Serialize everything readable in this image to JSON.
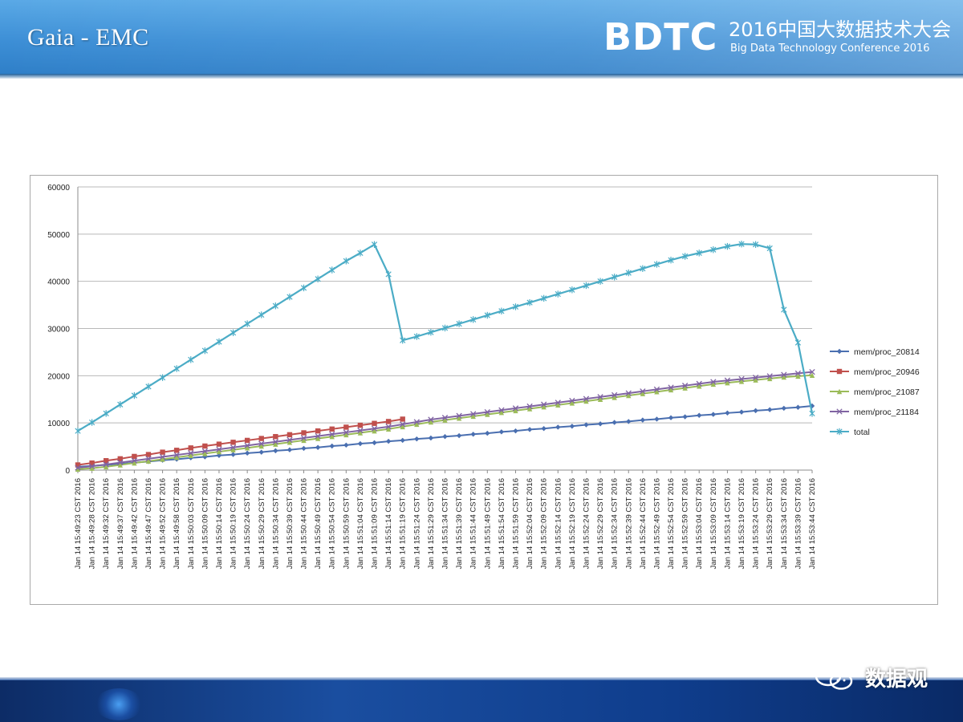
{
  "slide": {
    "title": "Gaia - EMC"
  },
  "logo": {
    "main": "BDTC",
    "chinese": "2016中国大数据技术大会",
    "english": "Big Data Technology Conference 2016"
  },
  "watermark": {
    "text": "数据观",
    "icon": "wechat-icon"
  },
  "colors": {
    "header": "#3d8fd6",
    "footer": "#1a4ea0",
    "gridline": "#b8b8b8",
    "series": [
      "#4a6fb0",
      "#c0504d",
      "#9bbb59",
      "#8064a2",
      "#4bacc6"
    ]
  },
  "chart_data": {
    "type": "line",
    "ylim": [
      0,
      60000
    ],
    "yticks": [
      0,
      10000,
      20000,
      30000,
      40000,
      50000,
      60000
    ],
    "grid": true,
    "legend_position": "right",
    "x_labels": [
      "Jan 14 15:49:23 CST 2016",
      "Jan 14 15:49:28 CST 2016",
      "Jan 14 15:49:32 CST 2016",
      "Jan 14 15:49:37 CST 2016",
      "Jan 14 15:49:42 CST 2016",
      "Jan 14 15:49:47 CST 2016",
      "Jan 14 15:49:52 CST 2016",
      "Jan 14 15:49:58 CST 2016",
      "Jan 14 15:50:03 CST 2016",
      "Jan 14 15:50:09 CST 2016",
      "Jan 14 15:50:14 CST 2016",
      "Jan 14 15:50:19 CST 2016",
      "Jan 14 15:50:24 CST 2016",
      "Jan 14 15:50:29 CST 2016",
      "Jan 14 15:50:34 CST 2016",
      "Jan 14 15:50:39 CST 2016",
      "Jan 14 15:50:44 CST 2016",
      "Jan 14 15:50:49 CST 2016",
      "Jan 14 15:50:54 CST 2016",
      "Jan 14 15:50:59 CST 2016",
      "Jan 14 15:51:04 CST 2016",
      "Jan 14 15:51:09 CST 2016",
      "Jan 14 15:51:14 CST 2016",
      "Jan 14 15:51:19 CST 2016",
      "Jan 14 15:51:24 CST 2016",
      "Jan 14 15:51:29 CST 2016",
      "Jan 14 15:51:34 CST 2016",
      "Jan 14 15:51:39 CST 2016",
      "Jan 14 15:51:44 CST 2016",
      "Jan 14 15:51:49 CST 2016",
      "Jan 14 15:51:54 CST 2016",
      "Jan 14 15:51:59 CST 2016",
      "Jan 14 15:52:04 CST 2016",
      "Jan 14 15:52:09 CST 2016",
      "Jan 14 15:52:14 CST 2016",
      "Jan 14 15:52:19 CST 2016",
      "Jan 14 15:52:24 CST 2016",
      "Jan 14 15:52:29 CST 2016",
      "Jan 14 15:52:34 CST 2016",
      "Jan 14 15:52:39 CST 2016",
      "Jan 14 15:52:44 CST 2016",
      "Jan 14 15:52:49 CST 2016",
      "Jan 14 15:52:54 CST 2016",
      "Jan 14 15:52:59 CST 2016",
      "Jan 14 15:53:04 CST 2016",
      "Jan 14 15:53:09 CST 2016",
      "Jan 14 15:53:14 CST 2016",
      "Jan 14 15:53:19 CST 2016",
      "Jan 14 15:53:24 CST 2016",
      "Jan 14 15:53:29 CST 2016",
      "Jan 14 15:53:34 CST 2016",
      "Jan 14 15:53:39 CST 2016",
      "Jan 14 15:53:44 CST 2016"
    ],
    "series": [
      {
        "name": "mem/proc_20814",
        "marker": "diamond",
        "values": [
          700,
          900,
          1100,
          1300,
          1600,
          1800,
          2100,
          2300,
          2600,
          2800,
          3100,
          3300,
          3600,
          3800,
          4100,
          4300,
          4600,
          4800,
          5100,
          5300,
          5600,
          5800,
          6100,
          6300,
          6600,
          6800,
          7100,
          7300,
          7600,
          7800,
          8100,
          8300,
          8600,
          8800,
          9100,
          9300,
          9600,
          9800,
          10100,
          10300,
          10600,
          10800,
          11100,
          11300,
          11600,
          11800,
          12100,
          12300,
          12600,
          12800,
          13100,
          13300,
          13600
        ]
      },
      {
        "name": "mem/proc_20946",
        "marker": "square",
        "values": [
          1100,
          1500,
          2000,
          2400,
          2900,
          3300,
          3800,
          4200,
          4700,
          5100,
          5500,
          5900,
          6300,
          6700,
          7100,
          7500,
          7900,
          8300,
          8700,
          9100,
          9500,
          9900,
          10300,
          10800,
          null,
          null,
          null,
          null,
          null,
          null,
          null,
          null,
          null,
          null,
          null,
          null,
          null,
          null,
          null,
          null,
          null,
          null,
          null,
          null,
          null,
          null,
          null,
          null,
          null,
          null,
          null,
          null,
          null
        ]
      },
      {
        "name": "mem/proc_21087",
        "marker": "triangle",
        "values": [
          200,
          400,
          700,
          1100,
          1500,
          1900,
          2300,
          2700,
          3100,
          3500,
          3900,
          4300,
          4700,
          5100,
          5500,
          5900,
          6300,
          6700,
          7100,
          7500,
          7900,
          8300,
          8700,
          9200,
          9700,
          10200,
          10600,
          11000,
          11400,
          11800,
          12200,
          12600,
          13000,
          13400,
          13800,
          14200,
          14600,
          15000,
          15400,
          15800,
          16200,
          16600,
          17000,
          17400,
          17800,
          18200,
          18500,
          18800,
          19100,
          19400,
          19700,
          19900,
          20100
        ]
      },
      {
        "name": "mem/proc_21184",
        "marker": "x",
        "values": [
          500,
          800,
          1200,
          1600,
          2000,
          2400,
          2800,
          3200,
          3600,
          4000,
          4400,
          4800,
          5200,
          5600,
          6000,
          6400,
          6800,
          7200,
          7600,
          8000,
          8400,
          8800,
          9200,
          9700,
          10200,
          10700,
          11100,
          11500,
          11900,
          12300,
          12700,
          13100,
          13500,
          13900,
          14300,
          14700,
          15100,
          15500,
          15900,
          16300,
          16700,
          17100,
          17500,
          17900,
          18300,
          18700,
          19000,
          19300,
          19600,
          19900,
          20200,
          20500,
          20800
        ]
      },
      {
        "name": "total",
        "marker": "star",
        "values": [
          8300,
          10100,
          12000,
          13900,
          15800,
          17700,
          19600,
          21500,
          23400,
          25300,
          27200,
          29100,
          31000,
          32900,
          34800,
          36700,
          38600,
          40500,
          42400,
          44300,
          46000,
          47800,
          41500,
          27500,
          28300,
          29200,
          30100,
          31000,
          31900,
          32800,
          33700,
          34600,
          35500,
          36400,
          37300,
          38200,
          39100,
          40000,
          40900,
          41800,
          42700,
          43600,
          44500,
          45300,
          46000,
          46700,
          47400,
          47900,
          47800,
          47000,
          34000,
          27000,
          12000
        ]
      }
    ]
  }
}
